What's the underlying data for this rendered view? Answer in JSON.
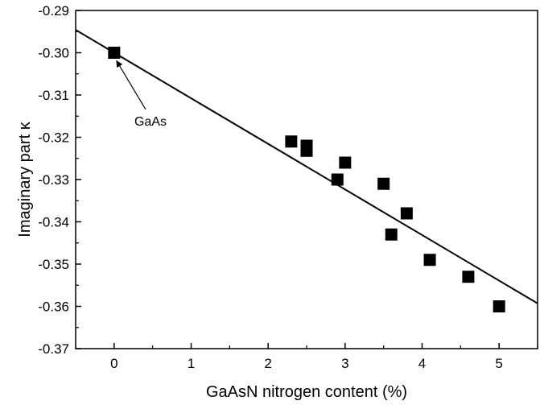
{
  "chart_data": {
    "type": "scatter",
    "title": "",
    "xlabel": "GaAsN nitrogen content (%)",
    "ylabel": "Imaginary part κ",
    "xlim": [
      -0.5,
      5.5
    ],
    "ylim": [
      -0.37,
      -0.29
    ],
    "x_ticks": [
      0,
      1,
      2,
      3,
      4,
      5
    ],
    "x_tick_labels": [
      "0",
      "1",
      "2",
      "3",
      "4",
      "5"
    ],
    "y_ticks": [
      -0.37,
      -0.36,
      -0.35,
      -0.34,
      -0.33,
      -0.32,
      -0.31,
      -0.3,
      -0.29
    ],
    "y_tick_labels": [
      "-0.37",
      "-0.36",
      "-0.35",
      "-0.34",
      "-0.33",
      "-0.32",
      "-0.31",
      "-0.30",
      "-0.29"
    ],
    "grid": false,
    "series": [
      {
        "marker": "square",
        "color": "#000000",
        "points": [
          {
            "x": 0.0,
            "y": -0.3
          },
          {
            "x": 2.3,
            "y": -0.321
          },
          {
            "x": 2.5,
            "y": -0.322
          },
          {
            "x": 2.5,
            "y": -0.3232
          },
          {
            "x": 3.0,
            "y": -0.326
          },
          {
            "x": 2.9,
            "y": -0.33
          },
          {
            "x": 3.5,
            "y": -0.331
          },
          {
            "x": 3.8,
            "y": -0.338
          },
          {
            "x": 3.6,
            "y": -0.343
          },
          {
            "x": 4.1,
            "y": -0.349
          },
          {
            "x": 4.6,
            "y": -0.353
          },
          {
            "x": 5.0,
            "y": -0.36
          }
        ]
      }
    ],
    "fit_line": {
      "color": "#000000",
      "points": [
        {
          "x": -0.5,
          "y": -0.2946
        },
        {
          "x": 5.5,
          "y": -0.3593
        }
      ]
    },
    "annotations": [
      {
        "text": "GaAs",
        "arrow_to": {
          "x": 0.0,
          "y": -0.3
        }
      }
    ]
  }
}
